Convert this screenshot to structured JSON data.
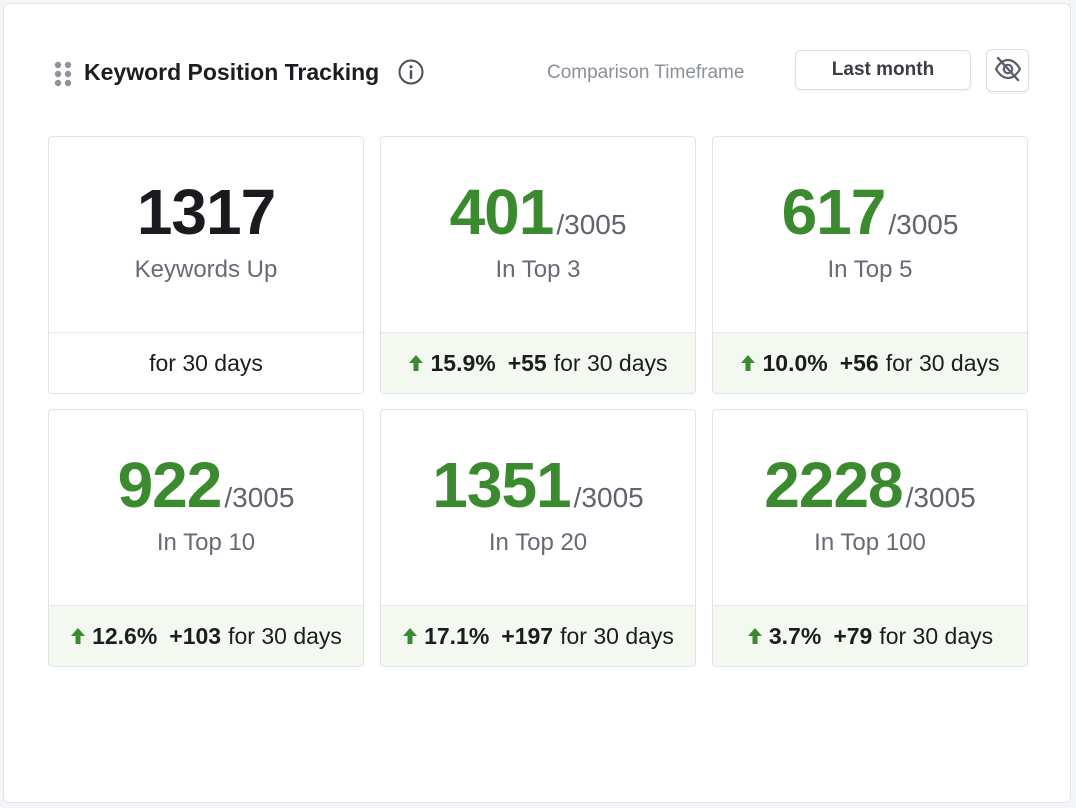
{
  "header": {
    "title": "Keyword Position Tracking",
    "timeframe_label": "Comparison Timeframe",
    "timeframe_value": "Last month"
  },
  "icons": {
    "drag": "drag-handle-icon",
    "info": "info-icon",
    "hide": "eye-off-icon",
    "trend": "arrow-up-icon"
  },
  "colors": {
    "positive": "#3a8a2e",
    "tint": "#f3f9f1"
  },
  "cards": [
    {
      "value": "1317",
      "total": "",
      "label": "Keywords Up",
      "pct": "",
      "delta": "",
      "period": "for 30 days"
    },
    {
      "value": "401",
      "total": "/3005",
      "label": "In Top 3",
      "pct": "15.9%",
      "delta": "+55",
      "period": "for 30 days"
    },
    {
      "value": "617",
      "total": "/3005",
      "label": "In Top 5",
      "pct": "10.0%",
      "delta": "+56",
      "period": "for 30 days"
    },
    {
      "value": "922",
      "total": "/3005",
      "label": "In Top 10",
      "pct": "12.6%",
      "delta": "+103",
      "period": "for 30 days"
    },
    {
      "value": "1351",
      "total": "/3005",
      "label": "In Top 20",
      "pct": "17.1%",
      "delta": "+197",
      "period": "for 30 days"
    },
    {
      "value": "2228",
      "total": "/3005",
      "label": "In Top 100",
      "pct": "3.7%",
      "delta": "+79",
      "period": "for 30 days"
    }
  ]
}
